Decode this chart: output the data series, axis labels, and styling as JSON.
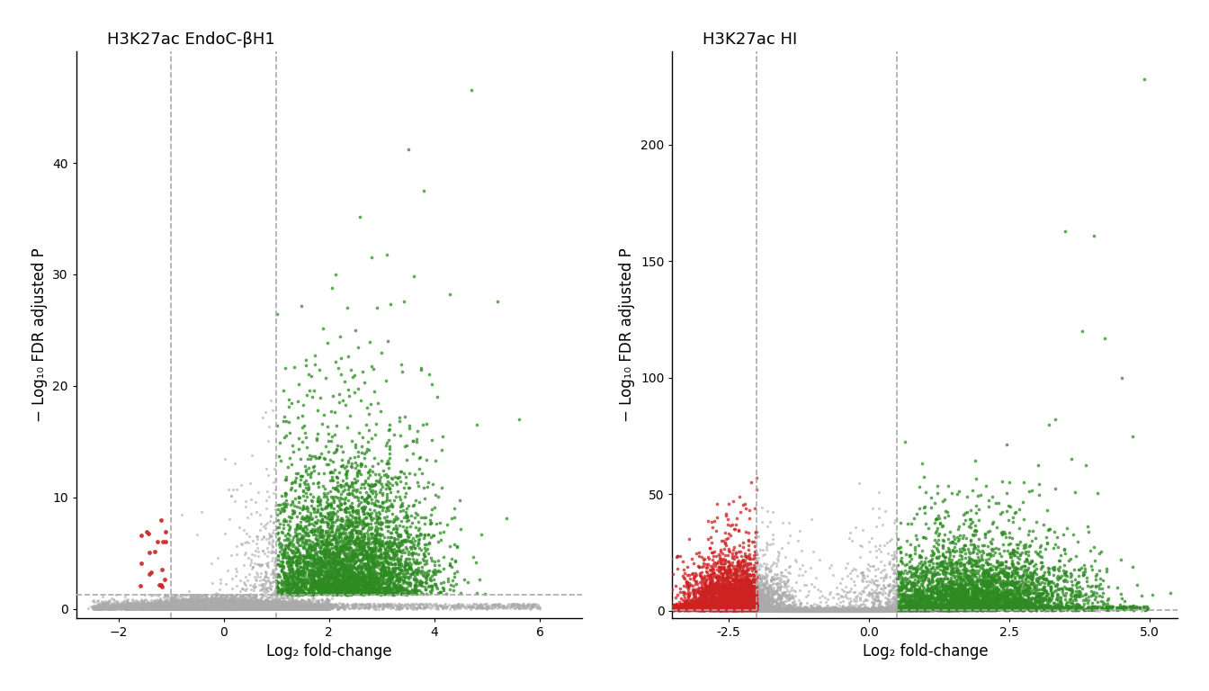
{
  "plot1": {
    "title": "H3K27ac EndoC-βH1",
    "xlabel": "Log₂ fold-change",
    "ylabel": "− Log₁₀ FDR adjusted P",
    "xlim": [
      -2.8,
      6.8
    ],
    "ylim": [
      -0.8,
      50
    ],
    "xticks": [
      -2,
      0,
      2,
      4,
      6
    ],
    "yticks": [
      0,
      10,
      20,
      30,
      40
    ],
    "vline1": -1,
    "vline2": 1,
    "hline": 1.3,
    "fc_thresh_low": -1,
    "fc_thresh_high": 1,
    "pval_thresh": 1.3,
    "color_gained": "#2E8B22",
    "color_lost": "#CC2222",
    "color_ns": "#AAAAAA"
  },
  "plot2": {
    "title": "H3K27ac HI",
    "xlabel": "Log₂ fold-change",
    "ylabel": "− Log₁₀ FDR adjusted P",
    "xlim": [
      -3.5,
      5.5
    ],
    "ylim": [
      -3,
      240
    ],
    "xticks": [
      -2.5,
      0.0,
      2.5,
      5.0
    ],
    "yticks": [
      0,
      50,
      100,
      150,
      200
    ],
    "vline1": -2,
    "vline2": 0.5,
    "hline": 0.3,
    "fc_thresh_low": -2,
    "fc_thresh_high": 0.5,
    "pval_thresh": 0.3,
    "color_gained": "#2E8B22",
    "color_lost": "#CC2222",
    "color_ns": "#AAAAAA"
  },
  "background_color": "#FFFFFF",
  "dpi": 100,
  "figsize": [
    13.44,
    7.68
  ]
}
